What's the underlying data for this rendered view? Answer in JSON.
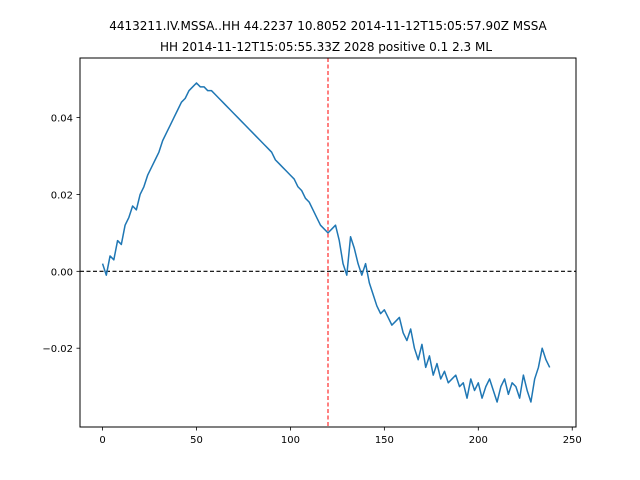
{
  "chart_data": {
    "type": "line",
    "title_line1": "4413211.IV.MSSA..HH 44.2237 10.8052 2014-11-12T15:05:57.90Z MSSA",
    "title_line2": "HH 2014-11-12T15:05:55.33Z 2028 positive 0.1 2.3 ML",
    "xlabel": "",
    "ylabel": "",
    "xlim": [
      -12,
      252
    ],
    "ylim": [
      -0.0405,
      0.0555
    ],
    "xticks": [
      0,
      50,
      100,
      150,
      200,
      250
    ],
    "xtick_labels": [
      "0",
      "50",
      "100",
      "150",
      "200",
      "250"
    ],
    "yticks": [
      -0.02,
      0.0,
      0.02,
      0.04
    ],
    "ytick_labels": [
      "−0.02",
      "0.00",
      "0.02",
      "0.04"
    ],
    "grid": false,
    "series_color": "#1f77b4",
    "hline": {
      "y": 0.0,
      "color": "#000000",
      "style": "dashed"
    },
    "vline": {
      "x": 120,
      "color": "#ff0000",
      "style": "dashed"
    },
    "x": [
      0,
      2,
      4,
      6,
      8,
      10,
      12,
      14,
      16,
      18,
      20,
      22,
      24,
      26,
      28,
      30,
      32,
      34,
      36,
      38,
      40,
      42,
      44,
      46,
      48,
      50,
      52,
      54,
      56,
      58,
      60,
      62,
      64,
      66,
      68,
      70,
      72,
      74,
      76,
      78,
      80,
      82,
      84,
      86,
      88,
      90,
      92,
      94,
      96,
      98,
      100,
      102,
      104,
      106,
      108,
      110,
      112,
      114,
      116,
      118,
      120,
      122,
      124,
      126,
      128,
      130,
      132,
      134,
      136,
      138,
      140,
      142,
      144,
      146,
      148,
      150,
      152,
      154,
      156,
      158,
      160,
      162,
      164,
      166,
      168,
      170,
      172,
      174,
      176,
      178,
      180,
      182,
      184,
      186,
      188,
      190,
      192,
      194,
      196,
      198,
      200,
      202,
      204,
      206,
      208,
      210,
      212,
      214,
      216,
      218,
      220,
      222,
      224,
      226,
      228,
      230,
      232,
      234,
      236,
      238
    ],
    "values": [
      0.002,
      -0.001,
      0.004,
      0.003,
      0.008,
      0.007,
      0.012,
      0.014,
      0.017,
      0.016,
      0.02,
      0.022,
      0.025,
      0.027,
      0.029,
      0.031,
      0.034,
      0.036,
      0.038,
      0.04,
      0.042,
      0.044,
      0.045,
      0.047,
      0.048,
      0.049,
      0.048,
      0.048,
      0.047,
      0.047,
      0.046,
      0.045,
      0.044,
      0.043,
      0.042,
      0.041,
      0.04,
      0.039,
      0.038,
      0.037,
      0.036,
      0.035,
      0.034,
      0.033,
      0.032,
      0.031,
      0.029,
      0.028,
      0.027,
      0.026,
      0.025,
      0.024,
      0.022,
      0.021,
      0.019,
      0.018,
      0.016,
      0.014,
      0.012,
      0.011,
      0.01,
      0.011,
      0.012,
      0.008,
      0.002,
      -0.001,
      0.009,
      0.006,
      0.002,
      -0.001,
      0.002,
      -0.003,
      -0.006,
      -0.009,
      -0.011,
      -0.01,
      -0.012,
      -0.014,
      -0.013,
      -0.012,
      -0.016,
      -0.018,
      -0.015,
      -0.02,
      -0.023,
      -0.019,
      -0.025,
      -0.022,
      -0.027,
      -0.024,
      -0.028,
      -0.026,
      -0.029,
      -0.028,
      -0.027,
      -0.03,
      -0.029,
      -0.033,
      -0.028,
      -0.031,
      -0.029,
      -0.033,
      -0.03,
      -0.028,
      -0.031,
      -0.034,
      -0.03,
      -0.028,
      -0.032,
      -0.029,
      -0.03,
      -0.033,
      -0.027,
      -0.031,
      -0.034,
      -0.028,
      -0.025,
      -0.02,
      -0.023,
      -0.025
    ]
  }
}
